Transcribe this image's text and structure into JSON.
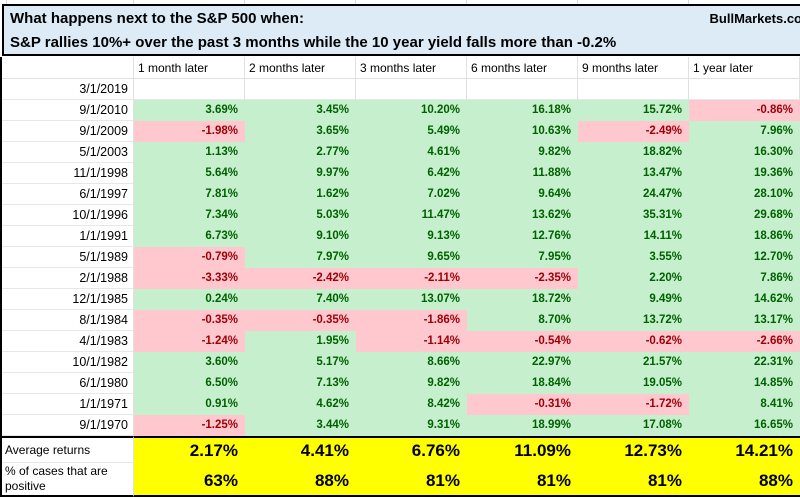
{
  "header": {
    "title": "What happens next to the S&P 500 when:",
    "brand": "BullMarkets.co",
    "subtitle": "S&P rallies 10%+ over the past 3 months while the 10 year yield falls more than -0.2%"
  },
  "colors": {
    "title_bg": "#DDEBF7",
    "positive_bg": "#C6EFCE",
    "positive_text": "#006100",
    "negative_bg": "#FFC7CE",
    "negative_text": "#9C0006",
    "summary_bg": "#FFFF00"
  },
  "chart_data": {
    "type": "table",
    "title": "What happens next to the S&P 500 when: S&P rallies 10%+ over the past 3 months while the 10 year yield falls more than -0.2%",
    "columns": [
      "1 month later",
      "2 months later",
      "3 months later",
      "6 months later",
      "9 months later",
      "1 year later"
    ],
    "rows": [
      {
        "date": "3/1/2019",
        "values": [
          "",
          "",
          "",
          "",
          "",
          ""
        ]
      },
      {
        "date": "9/1/2010",
        "values": [
          "3.69%",
          "3.45%",
          "10.20%",
          "16.18%",
          "15.72%",
          "-0.86%"
        ]
      },
      {
        "date": "9/1/2009",
        "values": [
          "-1.98%",
          "3.65%",
          "5.49%",
          "10.63%",
          "-2.49%",
          "7.96%"
        ]
      },
      {
        "date": "5/1/2003",
        "values": [
          "1.13%",
          "2.77%",
          "4.61%",
          "9.82%",
          "18.82%",
          "16.30%"
        ]
      },
      {
        "date": "11/1/1998",
        "values": [
          "5.64%",
          "9.97%",
          "6.42%",
          "11.88%",
          "13.47%",
          "19.36%"
        ]
      },
      {
        "date": "6/1/1997",
        "values": [
          "7.81%",
          "1.62%",
          "7.02%",
          "9.64%",
          "24.47%",
          "28.10%"
        ]
      },
      {
        "date": "10/1/1996",
        "values": [
          "7.34%",
          "5.03%",
          "11.47%",
          "13.62%",
          "35.31%",
          "29.68%"
        ]
      },
      {
        "date": "1/1/1991",
        "values": [
          "6.73%",
          "9.10%",
          "9.13%",
          "12.76%",
          "14.11%",
          "18.86%"
        ]
      },
      {
        "date": "5/1/1989",
        "values": [
          "-0.79%",
          "7.97%",
          "9.65%",
          "7.95%",
          "3.55%",
          "12.70%"
        ]
      },
      {
        "date": "2/1/1988",
        "values": [
          "-3.33%",
          "-2.42%",
          "-2.11%",
          "-2.35%",
          "2.20%",
          "7.86%"
        ]
      },
      {
        "date": "12/1/1985",
        "values": [
          "0.24%",
          "7.40%",
          "13.07%",
          "18.72%",
          "9.49%",
          "14.62%"
        ]
      },
      {
        "date": "8/1/1984",
        "values": [
          "-0.35%",
          "-0.35%",
          "-1.86%",
          "8.70%",
          "13.72%",
          "13.17%"
        ]
      },
      {
        "date": "4/1/1983",
        "values": [
          "-1.24%",
          "1.95%",
          "-1.14%",
          "-0.54%",
          "-0.62%",
          "-2.66%"
        ]
      },
      {
        "date": "10/1/1982",
        "values": [
          "3.60%",
          "5.17%",
          "8.66%",
          "22.97%",
          "21.57%",
          "22.31%"
        ]
      },
      {
        "date": "6/1/1980",
        "values": [
          "6.50%",
          "7.13%",
          "9.82%",
          "18.84%",
          "19.05%",
          "14.85%"
        ]
      },
      {
        "date": "1/1/1971",
        "values": [
          "0.91%",
          "4.62%",
          "8.42%",
          "-0.31%",
          "-1.72%",
          "8.41%"
        ]
      },
      {
        "date": "9/1/1970",
        "values": [
          "-1.25%",
          "3.44%",
          "9.31%",
          "18.99%",
          "17.08%",
          "16.65%"
        ]
      }
    ],
    "summary": {
      "avg_label": "Average returns",
      "avg_values": [
        "2.17%",
        "4.41%",
        "6.76%",
        "11.09%",
        "12.73%",
        "14.21%"
      ],
      "pct_label": "% of cases that are positive",
      "pct_values": [
        "63%",
        "88%",
        "81%",
        "81%",
        "81%",
        "88%"
      ]
    }
  }
}
